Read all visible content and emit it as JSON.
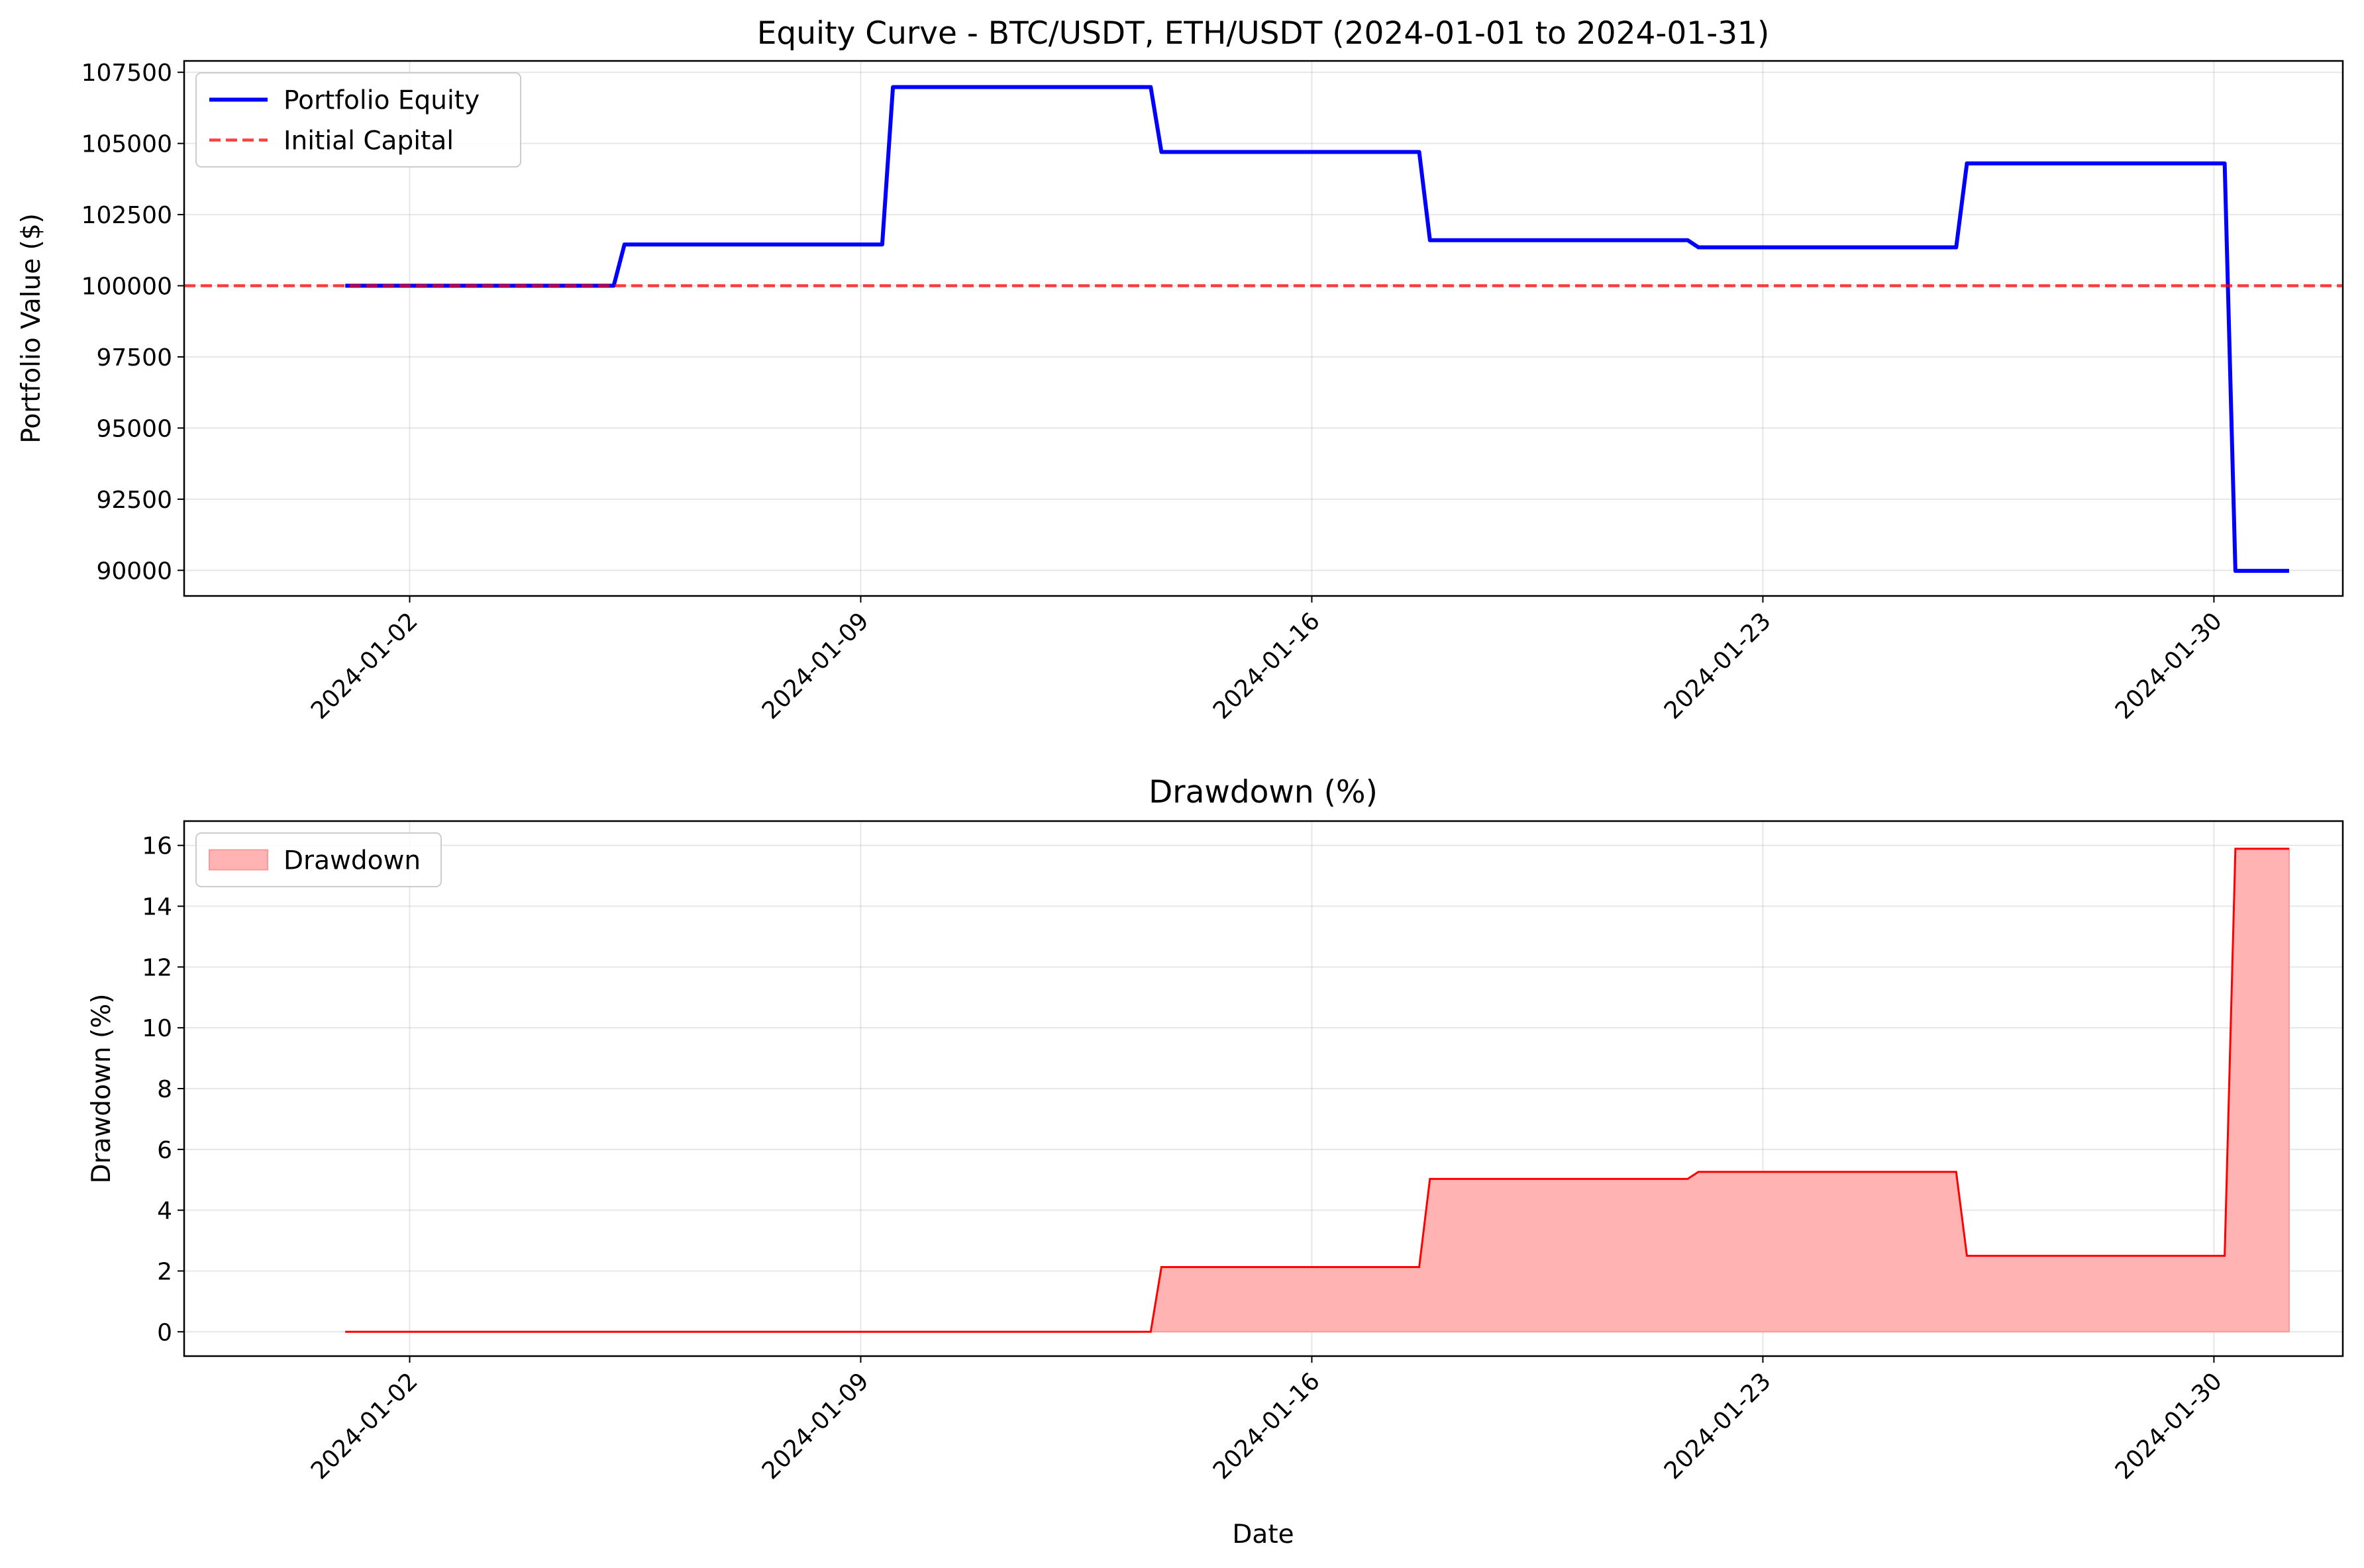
{
  "chart_data": [
    {
      "type": "line",
      "title": "Equity Curve - BTC/USDT, ETH/USDT (2024-01-01 to 2024-01-31)",
      "xlabel": "",
      "ylabel": "Portfolio Value ($)",
      "x_type": "date",
      "xlim": [
        "2023-12-29T12:00",
        "2024-02-01T00:00"
      ],
      "ylim": [
        89100,
        107900
      ],
      "xticks": [
        "2024-01-02",
        "2024-01-09",
        "2024-01-16",
        "2024-01-23",
        "2024-01-30"
      ],
      "yticks": [
        90000,
        92500,
        95000,
        97500,
        100000,
        102500,
        105000,
        107500
      ],
      "grid": true,
      "legend": "upper-left",
      "series": [
        {
          "name": "Portfolio Equity",
          "color": "#0000ff",
          "style": "solid",
          "points": [
            [
              "2024-01-01T00:00",
              100000
            ],
            [
              "2024-01-05T04:00",
              100000
            ],
            [
              "2024-01-05T08:00",
              101450
            ],
            [
              "2024-01-09T08:00",
              101450
            ],
            [
              "2024-01-09T12:00",
              106980
            ],
            [
              "2024-01-13T12:00",
              106980
            ],
            [
              "2024-01-13T16:00",
              104700
            ],
            [
              "2024-01-17T16:00",
              104700
            ],
            [
              "2024-01-17T20:00",
              101600
            ],
            [
              "2024-01-21T20:00",
              101600
            ],
            [
              "2024-01-22T00:00",
              101350
            ],
            [
              "2024-01-26T00:00",
              101350
            ],
            [
              "2024-01-26T04:00",
              104300
            ],
            [
              "2024-01-30T04:00",
              104300
            ],
            [
              "2024-01-30T08:00",
              89980
            ],
            [
              "2024-01-31T04:00",
              89980
            ]
          ]
        },
        {
          "name": "Initial Capital",
          "color": "#ff0000",
          "style": "dashed",
          "hline": 100000
        }
      ]
    },
    {
      "type": "area",
      "title": "Drawdown (%)",
      "xlabel": "Date",
      "ylabel": "Drawdown (%)",
      "x_type": "date",
      "xlim": [
        "2023-12-29T12:00",
        "2024-02-01T00:00"
      ],
      "ylim": [
        -0.8,
        16.8
      ],
      "xticks": [
        "2024-01-02",
        "2024-01-09",
        "2024-01-16",
        "2024-01-23",
        "2024-01-30"
      ],
      "yticks": [
        0,
        2,
        4,
        6,
        8,
        10,
        12,
        14,
        16
      ],
      "grid": true,
      "legend": "upper-left",
      "series": [
        {
          "name": "Drawdown",
          "color": "#ff0000",
          "fill": "#ffb3b3",
          "points": [
            [
              "2024-01-01T00:00",
              0
            ],
            [
              "2024-01-13T12:00",
              0
            ],
            [
              "2024-01-13T16:00",
              2.13
            ],
            [
              "2024-01-17T16:00",
              2.13
            ],
            [
              "2024-01-17T20:00",
              5.03
            ],
            [
              "2024-01-21T20:00",
              5.03
            ],
            [
              "2024-01-22T00:00",
              5.26
            ],
            [
              "2024-01-26T00:00",
              5.26
            ],
            [
              "2024-01-26T04:00",
              2.5
            ],
            [
              "2024-01-30T04:00",
              2.5
            ],
            [
              "2024-01-30T08:00",
              15.89
            ],
            [
              "2024-01-31T04:00",
              15.89
            ]
          ]
        }
      ]
    }
  ]
}
